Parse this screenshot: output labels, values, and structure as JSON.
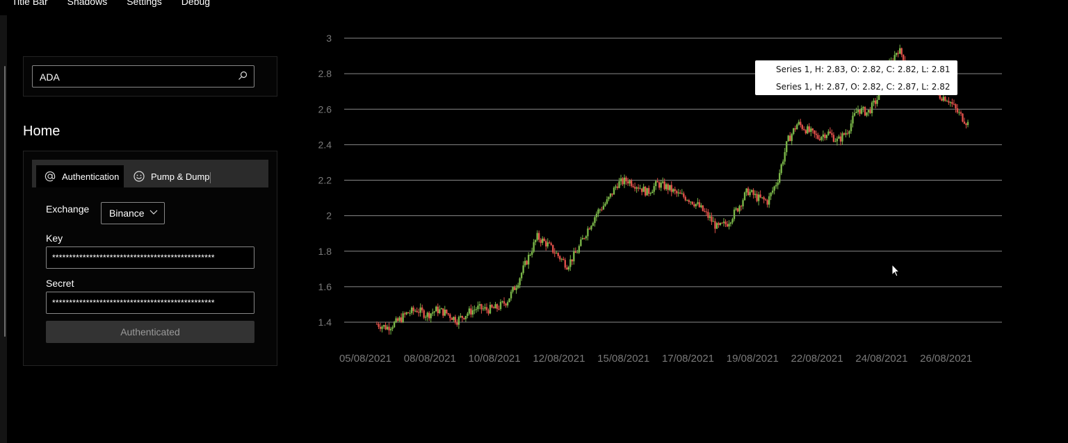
{
  "menubar": {
    "items": [
      "Title Bar",
      "Shadows",
      "Settings",
      "Debug"
    ]
  },
  "search": {
    "value": "ADA",
    "icon": "search-icon"
  },
  "page": {
    "title": "Home"
  },
  "tabs": [
    {
      "label": "Authentication",
      "icon": "at-sign-icon",
      "selected": true
    },
    {
      "label": "Pump & Dump",
      "icon": "smiley-icon",
      "selected": false
    }
  ],
  "form": {
    "exchange_label": "Exchange",
    "exchange_value": "Binance",
    "key_label": "Key",
    "key_value": "************************************************",
    "secret_label": "Secret",
    "secret_value": "************************************************",
    "auth_button": "Authenticated"
  },
  "colors": {
    "up": "#7ab648",
    "down": "#e0504a",
    "grid": "#8a8a8a",
    "background": "#000000"
  },
  "tooltip": {
    "lines": [
      "Series 1, H: 2.83, O: 2.82, C: 2.82, L: 2.81",
      "Series 1, H: 2.87, O: 2.82, C: 2.87, L: 2.82"
    ]
  },
  "chart_data": {
    "type": "candlestick",
    "grid": true,
    "ylim": [
      1.4,
      3
    ],
    "y_ticks": [
      3,
      2.8,
      2.6,
      2.4,
      2.2,
      2,
      1.8,
      1.6,
      1.4
    ],
    "x_ticks": [
      "05/08/2021",
      "08/08/2021",
      "10/08/2021",
      "12/08/2021",
      "15/08/2021",
      "17/08/2021",
      "19/08/2021",
      "22/08/2021",
      "24/08/2021",
      "26/08/2021"
    ],
    "series": [
      {
        "trend": [
          1.39,
          1.37,
          1.4,
          1.45,
          1.47,
          1.44,
          1.47,
          1.45,
          1.41,
          1.45,
          1.48,
          1.47,
          1.48,
          1.52,
          1.62,
          1.75,
          1.88,
          1.84,
          1.78,
          1.72,
          1.8,
          1.92,
          2.02,
          2.08,
          2.18,
          2.2,
          2.17,
          2.13,
          2.18,
          2.16,
          2.12,
          2.1,
          2.06,
          2.0,
          1.93,
          1.96,
          2.04,
          2.14,
          2.1,
          2.08,
          2.2,
          2.42,
          2.52,
          2.48,
          2.44,
          2.47,
          2.42,
          2.48,
          2.6,
          2.58,
          2.66,
          2.82,
          2.94,
          2.86,
          2.72,
          2.74,
          2.68,
          2.66,
          2.58,
          2.52
        ]
      }
    ]
  }
}
